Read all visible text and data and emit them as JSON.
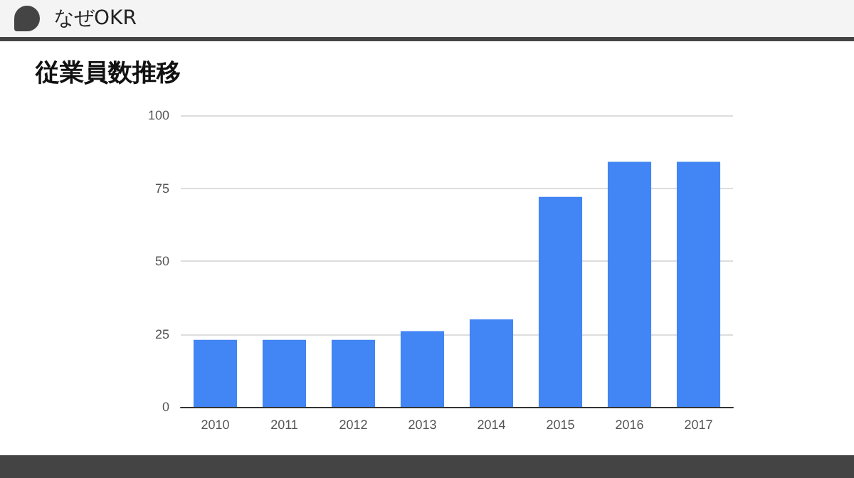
{
  "chart_data": {
    "type": "bar",
    "title": "なぜOKR",
    "subtitle": "従業員数推移",
    "categories": [
      "2010",
      "2011",
      "2012",
      "2013",
      "2014",
      "2015",
      "2016",
      "2017"
    ],
    "values": [
      23,
      23,
      23,
      26,
      30,
      72,
      84,
      84
    ],
    "color": "#4285f4",
    "ylim": [
      0,
      100
    ],
    "yticks": [
      0,
      25,
      50,
      75,
      100
    ],
    "grid": "y"
  }
}
